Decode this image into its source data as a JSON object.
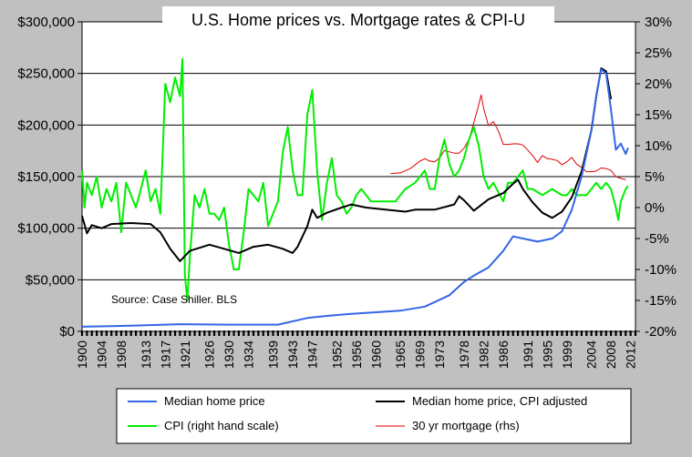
{
  "chart_data": {
    "type": "line",
    "title": "U.S. Home prices vs. Mortgage rates & CPI-U",
    "annotation": "Source: Case Shiller. BLS",
    "x_ticks": [
      "1900",
      "1904",
      "1908",
      "1913",
      "1917",
      "1921",
      "1926",
      "1930",
      "1934",
      "1939",
      "1943",
      "1947",
      "1952",
      "1956",
      "1960",
      "1965",
      "1969",
      "1973",
      "1978",
      "1982",
      "1986",
      "1991",
      "1995",
      "1999",
      "2004",
      "2008",
      "2012"
    ],
    "xlim": [
      1900,
      2013
    ],
    "ylim": [
      0,
      300000
    ],
    "y2lim": [
      -20,
      30
    ],
    "y_ticks": [
      "$0",
      "$50,000",
      "$100,000",
      "$150,000",
      "$200,000",
      "$250,000",
      "$300,000"
    ],
    "y2_ticks": [
      "-20%",
      "-15%",
      "-10%",
      "-5%",
      "0%",
      "5%",
      "10%",
      "15%",
      "20%",
      "25%",
      "30%"
    ],
    "gridlines": "horizontal",
    "legend_position": "bottom",
    "series": [
      {
        "name": "Median home price",
        "axis": "left",
        "color": "#3366e6",
        "points": [
          [
            1900,
            4500
          ],
          [
            1910,
            5500
          ],
          [
            1920,
            7000
          ],
          [
            1930,
            6500
          ],
          [
            1940,
            6500
          ],
          [
            1946,
            13000
          ],
          [
            1950,
            15000
          ],
          [
            1955,
            17000
          ],
          [
            1960,
            18500
          ],
          [
            1965,
            20000
          ],
          [
            1970,
            24000
          ],
          [
            1975,
            35000
          ],
          [
            1978,
            48000
          ],
          [
            1980,
            54000
          ],
          [
            1983,
            62000
          ],
          [
            1986,
            78000
          ],
          [
            1988,
            92000
          ],
          [
            1990,
            90000
          ],
          [
            1993,
            87000
          ],
          [
            1996,
            90000
          ],
          [
            1998,
            97000
          ],
          [
            2000,
            118000
          ],
          [
            2002,
            150000
          ],
          [
            2004,
            195000
          ],
          [
            2005,
            228000
          ],
          [
            2006,
            254000
          ],
          [
            2007,
            250000
          ],
          [
            2008,
            215000
          ],
          [
            2009,
            176000
          ],
          [
            2010,
            182000
          ],
          [
            2011,
            172000
          ],
          [
            2011.5,
            178000
          ]
        ]
      },
      {
        "name": "Median home price, CPI adjusted",
        "axis": "left",
        "color": "#000000",
        "points": [
          [
            1900,
            112000
          ],
          [
            1901,
            95000
          ],
          [
            1902,
            103000
          ],
          [
            1904,
            100000
          ],
          [
            1906,
            104000
          ],
          [
            1910,
            105000
          ],
          [
            1914,
            104000
          ],
          [
            1916,
            96000
          ],
          [
            1918,
            80000
          ],
          [
            1920,
            68000
          ],
          [
            1922,
            78000
          ],
          [
            1926,
            84000
          ],
          [
            1929,
            80000
          ],
          [
            1932,
            76000
          ],
          [
            1935,
            82000
          ],
          [
            1938,
            84000
          ],
          [
            1941,
            80000
          ],
          [
            1943,
            76000
          ],
          [
            1944,
            82000
          ],
          [
            1946,
            102000
          ],
          [
            1947,
            118000
          ],
          [
            1948,
            110000
          ],
          [
            1950,
            115000
          ],
          [
            1953,
            120000
          ],
          [
            1955,
            123000
          ],
          [
            1958,
            120000
          ],
          [
            1962,
            118000
          ],
          [
            1966,
            116000
          ],
          [
            1968,
            118000
          ],
          [
            1972,
            118000
          ],
          [
            1976,
            123000
          ],
          [
            1977,
            131000
          ],
          [
            1978,
            127000
          ],
          [
            1980,
            117000
          ],
          [
            1983,
            128000
          ],
          [
            1986,
            134000
          ],
          [
            1988,
            143000
          ],
          [
            1989,
            147000
          ],
          [
            1990,
            138000
          ],
          [
            1992,
            125000
          ],
          [
            1994,
            115000
          ],
          [
            1996,
            110000
          ],
          [
            1998,
            116000
          ],
          [
            2000,
            130000
          ],
          [
            2002,
            155000
          ],
          [
            2004,
            195000
          ],
          [
            2005,
            228000
          ],
          [
            2006,
            255000
          ],
          [
            2007,
            252000
          ],
          [
            2008,
            225000
          ]
        ]
      },
      {
        "name": "CPI (right hand scale)",
        "axis": "right",
        "color": "#00ee00",
        "points": [
          [
            1900,
            6
          ],
          [
            1900.5,
            0
          ],
          [
            1901,
            4
          ],
          [
            1902,
            2
          ],
          [
            1903,
            5
          ],
          [
            1904,
            0
          ],
          [
            1905,
            3
          ],
          [
            1906,
            1
          ],
          [
            1907,
            4
          ],
          [
            1908,
            -4
          ],
          [
            1909,
            4
          ],
          [
            1910,
            2
          ],
          [
            1911,
            0
          ],
          [
            1912,
            3
          ],
          [
            1913,
            6
          ],
          [
            1914,
            1
          ],
          [
            1915,
            3
          ],
          [
            1916,
            -1
          ],
          [
            1917,
            20
          ],
          [
            1918,
            17
          ],
          [
            1919,
            21
          ],
          [
            1920,
            18
          ],
          [
            1920.5,
            24
          ],
          [
            1921,
            -11
          ],
          [
            1921.5,
            -15
          ],
          [
            1922,
            -8
          ],
          [
            1923,
            2
          ],
          [
            1924,
            0
          ],
          [
            1925,
            3
          ],
          [
            1926,
            -1
          ],
          [
            1927,
            -1
          ],
          [
            1928,
            -2
          ],
          [
            1929,
            0
          ],
          [
            1930,
            -6
          ],
          [
            1931,
            -10
          ],
          [
            1932,
            -10
          ],
          [
            1933,
            -4
          ],
          [
            1934,
            3
          ],
          [
            1935,
            2
          ],
          [
            1936,
            1
          ],
          [
            1937,
            4
          ],
          [
            1938,
            -3
          ],
          [
            1939,
            -1
          ],
          [
            1940,
            1
          ],
          [
            1941,
            9
          ],
          [
            1942,
            13
          ],
          [
            1943,
            6
          ],
          [
            1944,
            2
          ],
          [
            1945,
            2
          ],
          [
            1946,
            15
          ],
          [
            1947,
            19
          ],
          [
            1948,
            6
          ],
          [
            1949,
            -2
          ],
          [
            1950,
            4
          ],
          [
            1951,
            8
          ],
          [
            1952,
            2
          ],
          [
            1953,
            1
          ],
          [
            1954,
            -1
          ],
          [
            1955,
            0
          ],
          [
            1956,
            2
          ],
          [
            1957,
            3
          ],
          [
            1958,
            2
          ],
          [
            1959,
            1
          ],
          [
            1960,
            1
          ],
          [
            1962,
            1
          ],
          [
            1964,
            1
          ],
          [
            1966,
            3
          ],
          [
            1968,
            4
          ],
          [
            1970,
            6
          ],
          [
            1971,
            3
          ],
          [
            1972,
            3
          ],
          [
            1973,
            8
          ],
          [
            1974,
            11
          ],
          [
            1975,
            7
          ],
          [
            1976,
            5
          ],
          [
            1977,
            6
          ],
          [
            1978,
            8
          ],
          [
            1979,
            11
          ],
          [
            1980,
            13
          ],
          [
            1981,
            10
          ],
          [
            1982,
            5
          ],
          [
            1983,
            3
          ],
          [
            1984,
            4
          ],
          [
            1986,
            1
          ],
          [
            1987,
            4
          ],
          [
            1988,
            4
          ],
          [
            1989,
            5
          ],
          [
            1990,
            6
          ],
          [
            1991,
            3
          ],
          [
            1992,
            3
          ],
          [
            1994,
            2
          ],
          [
            1996,
            3
          ],
          [
            1998,
            2
          ],
          [
            1999,
            2
          ],
          [
            2000,
            3
          ],
          [
            2001,
            2
          ],
          [
            2002,
            2
          ],
          [
            2003,
            2
          ],
          [
            2004,
            3
          ],
          [
            2005,
            4
          ],
          [
            2006,
            3
          ],
          [
            2007,
            4
          ],
          [
            2008,
            3
          ],
          [
            2009,
            0
          ],
          [
            2009.5,
            -2
          ],
          [
            2010,
            1
          ],
          [
            2011,
            3
          ],
          [
            2011.5,
            3.5
          ]
        ]
      },
      {
        "name": "30 yr mortgage (rhs)",
        "axis": "right",
        "color": "#e00000",
        "points": [
          [
            1963,
            5.5
          ],
          [
            1965,
            5.6
          ],
          [
            1967,
            6.3
          ],
          [
            1969,
            7.5
          ],
          [
            1970,
            7.9
          ],
          [
            1971,
            7.5
          ],
          [
            1972,
            7.4
          ],
          [
            1973,
            8
          ],
          [
            1974,
            9.2
          ],
          [
            1975,
            9
          ],
          [
            1976,
            8.8
          ],
          [
            1977,
            8.8
          ],
          [
            1978,
            9.6
          ],
          [
            1979,
            11
          ],
          [
            1980,
            13.7
          ],
          [
            1981,
            16.6
          ],
          [
            1981.5,
            18.2
          ],
          [
            1982,
            16
          ],
          [
            1983,
            13.2
          ],
          [
            1984,
            13.9
          ],
          [
            1985,
            12.4
          ],
          [
            1986,
            10.2
          ],
          [
            1987,
            10.2
          ],
          [
            1988,
            10.3
          ],
          [
            1989,
            10.3
          ],
          [
            1990,
            10.1
          ],
          [
            1991,
            9.3
          ],
          [
            1992,
            8.4
          ],
          [
            1993,
            7.3
          ],
          [
            1994,
            8.4
          ],
          [
            1995,
            7.9
          ],
          [
            1996,
            7.8
          ],
          [
            1997,
            7.6
          ],
          [
            1998,
            6.9
          ],
          [
            1999,
            7.4
          ],
          [
            2000,
            8.1
          ],
          [
            2001,
            7
          ],
          [
            2002,
            6.5
          ],
          [
            2003,
            5.8
          ],
          [
            2004,
            5.8
          ],
          [
            2005,
            5.9
          ],
          [
            2006,
            6.4
          ],
          [
            2007,
            6.3
          ],
          [
            2008,
            6
          ],
          [
            2009,
            5
          ],
          [
            2010,
            4.7
          ],
          [
            2011,
            4.5
          ]
        ]
      }
    ]
  }
}
